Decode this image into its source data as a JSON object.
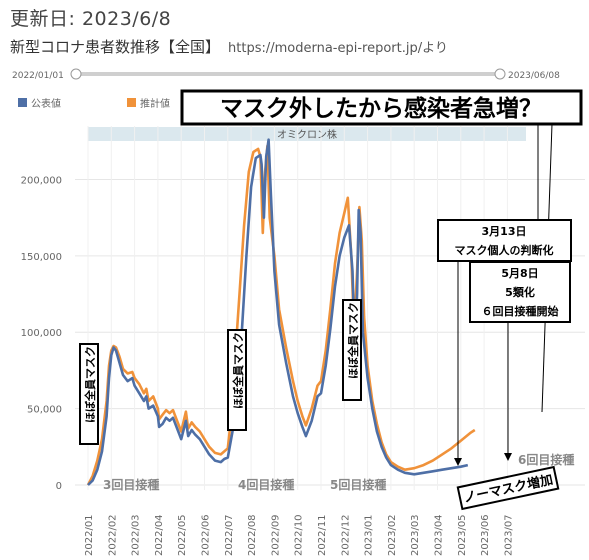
{
  "header": {
    "updated": "更新日: 2023/6/8",
    "title": "新型コロナ患者数推移【全国】",
    "source": "https://moderna-epi-report.jp/より"
  },
  "slider": {
    "start": "2022/01/01",
    "end": "2023/06/08"
  },
  "legend": {
    "official": "公表値",
    "estimated": "推計値"
  },
  "callout_title": "マスク外したから感染者急増？",
  "band_label": "オミクロン株",
  "annotations": {
    "mask1": "ほぼ全員マスク",
    "mask2": "ほぼ全員マスク",
    "mask3": "ほぼ全員マスク",
    "vax3": "3回目接種",
    "vax4": "4回目接種",
    "vax5": "5回目接種",
    "vax6": "6回目接種",
    "nomask": "ノーマスク増加",
    "march13_line1": "3月13日",
    "march13_line2": "マスク個人の判断化",
    "may8_line1": "5月8日",
    "may8_line2": "5類化",
    "may8_line3": "６回目接種開始"
  },
  "colors": {
    "official": "#4e6fa6",
    "estimated": "#f0923a",
    "band": "#dbe8ee"
  },
  "chart_data": {
    "type": "line",
    "x_ticks": [
      "2022/01",
      "2022/02",
      "2022/03",
      "2022/04",
      "2022/05",
      "2022/06",
      "2022/07",
      "2022/08",
      "2022/09",
      "2022/10",
      "2022/11",
      "2022/12",
      "2023/01",
      "2023/02",
      "2023/03",
      "2023/04",
      "2023/05",
      "2023/06",
      "2023/07"
    ],
    "y_ticks": [
      "0",
      "50,000",
      "100,000",
      "150,000",
      "200,000"
    ],
    "ylim": [
      0,
      235000
    ],
    "series": [
      {
        "name": "公表値",
        "points": [
          [
            0,
            0
          ],
          [
            0.2,
            3000
          ],
          [
            0.4,
            10000
          ],
          [
            0.6,
            22000
          ],
          [
            0.8,
            45000
          ],
          [
            0.9,
            70000
          ],
          [
            1.0,
            85000
          ],
          [
            1.1,
            90000
          ],
          [
            1.2,
            88000
          ],
          [
            1.35,
            80000
          ],
          [
            1.5,
            72000
          ],
          [
            1.7,
            68000
          ],
          [
            1.9,
            70000
          ],
          [
            2.0,
            65000
          ],
          [
            2.2,
            60000
          ],
          [
            2.4,
            55000
          ],
          [
            2.5,
            58000
          ],
          [
            2.6,
            50000
          ],
          [
            2.8,
            52000
          ],
          [
            3.0,
            45000
          ],
          [
            3.05,
            38000
          ],
          [
            3.2,
            40000
          ],
          [
            3.35,
            44000
          ],
          [
            3.5,
            42000
          ],
          [
            3.65,
            44000
          ],
          [
            3.8,
            38000
          ],
          [
            4.0,
            30000
          ],
          [
            4.2,
            42000
          ],
          [
            4.3,
            32000
          ],
          [
            4.45,
            36000
          ],
          [
            4.6,
            33000
          ],
          [
            4.8,
            30000
          ],
          [
            5.0,
            25000
          ],
          [
            5.2,
            20000
          ],
          [
            5.45,
            16000
          ],
          [
            5.7,
            15000
          ],
          [
            5.85,
            17000
          ],
          [
            6.0,
            18000
          ],
          [
            6.2,
            35000
          ],
          [
            6.4,
            60000
          ],
          [
            6.6,
            100000
          ],
          [
            6.8,
            150000
          ],
          [
            7.0,
            195000
          ],
          [
            7.2,
            214000
          ],
          [
            7.4,
            216000
          ],
          [
            7.45,
            210000
          ],
          [
            7.55,
            175000
          ],
          [
            7.65,
            215000
          ],
          [
            7.75,
            226000
          ],
          [
            7.85,
            190000
          ],
          [
            8.0,
            140000
          ],
          [
            8.2,
            105000
          ],
          [
            8.5,
            80000
          ],
          [
            8.8,
            58000
          ],
          [
            9.0,
            47000
          ],
          [
            9.2,
            38000
          ],
          [
            9.35,
            32000
          ],
          [
            9.6,
            42000
          ],
          [
            9.85,
            58000
          ],
          [
            10.0,
            60000
          ],
          [
            10.2,
            78000
          ],
          [
            10.4,
            102000
          ],
          [
            10.6,
            130000
          ],
          [
            10.8,
            150000
          ],
          [
            11.0,
            162000
          ],
          [
            11.2,
            170000
          ],
          [
            11.35,
            140000
          ],
          [
            11.45,
            90000
          ],
          [
            11.55,
            125000
          ],
          [
            11.62,
            180000
          ],
          [
            11.7,
            165000
          ],
          [
            11.8,
            100000
          ],
          [
            12.0,
            70000
          ],
          [
            12.2,
            50000
          ],
          [
            12.4,
            35000
          ],
          [
            12.6,
            25000
          ],
          [
            12.8,
            18000
          ],
          [
            13.0,
            13000
          ],
          [
            13.3,
            10000
          ],
          [
            13.6,
            8000
          ],
          [
            14.0,
            7000
          ],
          [
            14.4,
            8000
          ],
          [
            14.8,
            9000
          ],
          [
            15.2,
            10000
          ],
          [
            15.6,
            11000
          ],
          [
            16.0,
            12000
          ],
          [
            16.3,
            13000
          ]
        ]
      },
      {
        "name": "推計値",
        "points": [
          [
            0,
            0
          ],
          [
            0.2,
            6000
          ],
          [
            0.4,
            16000
          ],
          [
            0.6,
            30000
          ],
          [
            0.8,
            55000
          ],
          [
            0.9,
            78000
          ],
          [
            1.0,
            88000
          ],
          [
            1.1,
            91000
          ],
          [
            1.2,
            90000
          ],
          [
            1.35,
            84000
          ],
          [
            1.5,
            76000
          ],
          [
            1.7,
            73000
          ],
          [
            1.9,
            74000
          ],
          [
            2.0,
            70000
          ],
          [
            2.2,
            66000
          ],
          [
            2.4,
            60000
          ],
          [
            2.5,
            63000
          ],
          [
            2.6,
            55000
          ],
          [
            2.8,
            58000
          ],
          [
            3.0,
            50000
          ],
          [
            3.05,
            43000
          ],
          [
            3.2,
            46000
          ],
          [
            3.35,
            49000
          ],
          [
            3.5,
            47000
          ],
          [
            3.65,
            49000
          ],
          [
            3.8,
            43000
          ],
          [
            4.0,
            35000
          ],
          [
            4.2,
            48000
          ],
          [
            4.3,
            37000
          ],
          [
            4.45,
            41000
          ],
          [
            4.6,
            38000
          ],
          [
            4.8,
            35000
          ],
          [
            5.0,
            30000
          ],
          [
            5.2,
            25000
          ],
          [
            5.45,
            21000
          ],
          [
            5.7,
            20000
          ],
          [
            5.85,
            22000
          ],
          [
            6.0,
            24000
          ],
          [
            6.15,
            45000
          ],
          [
            6.3,
            80000
          ],
          [
            6.5,
            125000
          ],
          [
            6.7,
            170000
          ],
          [
            6.9,
            205000
          ],
          [
            7.1,
            218000
          ],
          [
            7.3,
            220000
          ],
          [
            7.4,
            215000
          ],
          [
            7.5,
            165000
          ],
          [
            7.6,
            205000
          ],
          [
            7.7,
            222000
          ],
          [
            7.8,
            175000
          ],
          [
            8.0,
            150000
          ],
          [
            8.2,
            115000
          ],
          [
            8.5,
            90000
          ],
          [
            8.8,
            68000
          ],
          [
            9.0,
            55000
          ],
          [
            9.2,
            45000
          ],
          [
            9.35,
            39000
          ],
          [
            9.6,
            50000
          ],
          [
            9.85,
            65000
          ],
          [
            10.0,
            68000
          ],
          [
            10.2,
            88000
          ],
          [
            10.4,
            115000
          ],
          [
            10.6,
            145000
          ],
          [
            10.8,
            165000
          ],
          [
            11.0,
            178000
          ],
          [
            11.15,
            188000
          ],
          [
            11.3,
            150000
          ],
          [
            11.42,
            100000
          ],
          [
            11.55,
            140000
          ],
          [
            11.65,
            182000
          ],
          [
            11.75,
            160000
          ],
          [
            11.85,
            110000
          ],
          [
            12.0,
            78000
          ],
          [
            12.2,
            55000
          ],
          [
            12.4,
            40000
          ],
          [
            12.6,
            28000
          ],
          [
            12.8,
            20000
          ],
          [
            13.0,
            15000
          ],
          [
            13.3,
            12000
          ],
          [
            13.6,
            10000
          ],
          [
            14.0,
            11000
          ],
          [
            14.4,
            13000
          ],
          [
            14.8,
            16000
          ],
          [
            15.2,
            20000
          ],
          [
            15.6,
            24000
          ],
          [
            16.0,
            29000
          ],
          [
            16.4,
            34000
          ],
          [
            16.6,
            36000
          ]
        ]
      }
    ]
  }
}
